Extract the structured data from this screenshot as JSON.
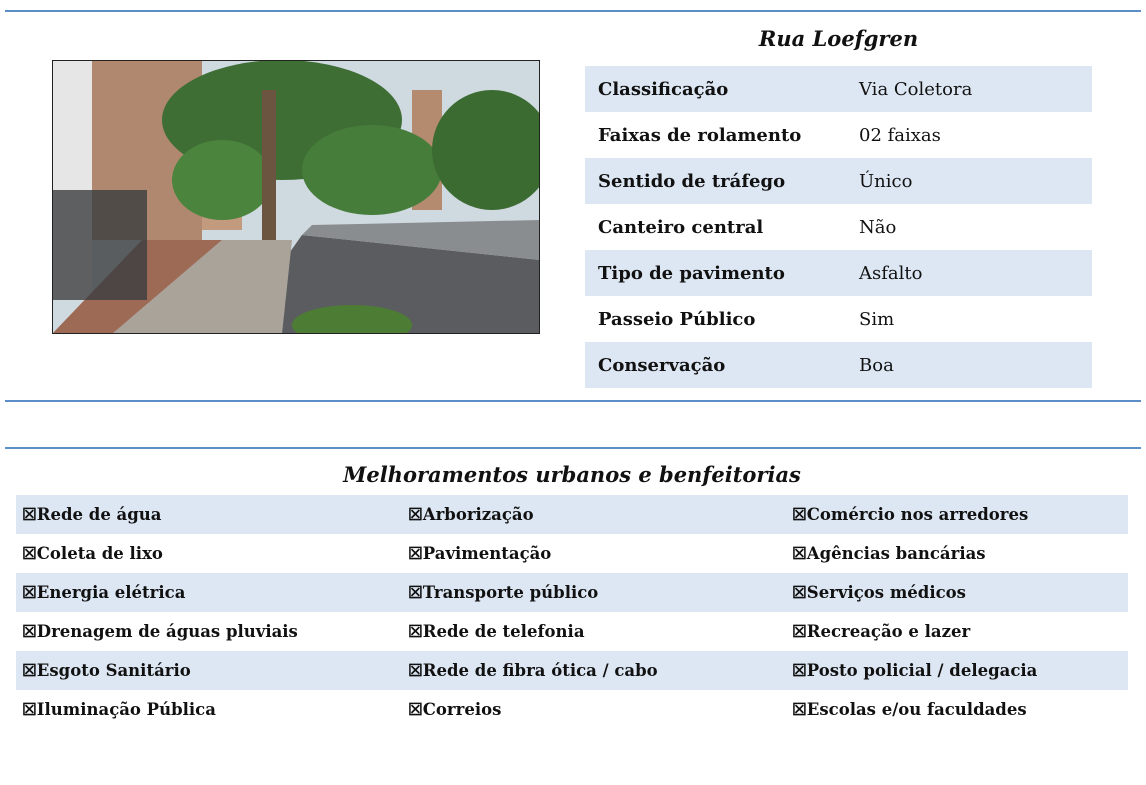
{
  "street_info": {
    "title": "Rua Loefgren",
    "rows": [
      [
        "Classificação",
        "Via Coletora"
      ],
      [
        "Faixas de rolamento",
        "02 faixas"
      ],
      [
        "Sentido de tráfego",
        "Único"
      ],
      [
        "Canteiro central",
        "Não"
      ],
      [
        "Tipo de pavimento",
        "Asfalto"
      ],
      [
        "Passeio Público",
        "Sim"
      ],
      [
        "Conservação",
        "Boa"
      ]
    ]
  },
  "improvements": {
    "title": "Melhoramentos urbanos e benfeitorias",
    "rows": [
      [
        "☒Rede de água",
        "☒Arborização",
        "☒Comércio nos arredores"
      ],
      [
        "☒Coleta de lixo",
        "☒Pavimentação",
        "☒Agências bancárias"
      ],
      [
        "☒Energia elétrica",
        "☒Transporte público",
        "☒Serviços médicos"
      ],
      [
        "☒Drenagem de águas pluviais",
        "☒Rede de telefonia",
        "☒Recreação e lazer"
      ],
      [
        "☒Esgoto Sanitário",
        "☒Rede de fibra ótica / cabo",
        "☒Posto policial / delegacia"
      ],
      [
        "☒Iluminação Pública",
        "☒Correios",
        "☒Escolas e/ou faculdades"
      ]
    ]
  }
}
